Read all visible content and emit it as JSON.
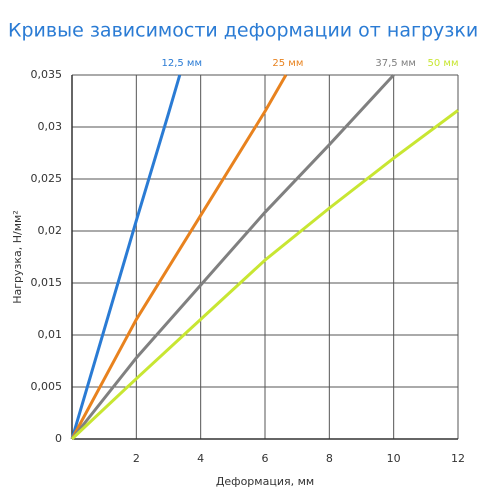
{
  "chart_data": {
    "type": "line",
    "title": "Кривые зависимости деформации от нагрузки",
    "x_label": "Деформация, мм",
    "y_label": "Нагрузка, Н/мм²",
    "xlim": [
      0,
      12
    ],
    "xticks": [
      2,
      4,
      6,
      8,
      10,
      12
    ],
    "ylim": [
      0,
      0.035
    ],
    "yticks": [
      0,
      {
        "value": 0.005,
        "label": "0,005"
      },
      {
        "value": 0.01,
        "label": "0,01"
      },
      {
        "value": 0.015,
        "label": "0,015"
      },
      {
        "value": 0.02,
        "label": "0,02"
      },
      {
        "value": 0.025,
        "label": "0,025"
      },
      {
        "value": 0.03,
        "label": "0,03"
      },
      {
        "value": 0.035,
        "label": "0,035"
      }
    ],
    "grid": true,
    "series": [
      {
        "name": "12,5 мм",
        "color": "#2a7bd4",
        "x": [
          0,
          1,
          2,
          3,
          3.35
        ],
        "values": [
          0,
          0.0105,
          0.021,
          0.0313,
          0.035
        ]
      },
      {
        "name": "25 мм",
        "color": "#e8821e",
        "x": [
          0,
          2,
          4,
          6,
          6.65
        ],
        "values": [
          0,
          0.0115,
          0.0215,
          0.0315,
          0.035
        ]
      },
      {
        "name": "37,5 мм",
        "color": "#808080",
        "x": [
          0,
          2,
          4,
          6,
          8,
          10
        ],
        "values": [
          0,
          0.0078,
          0.0148,
          0.0218,
          0.0283,
          0.035
        ]
      },
      {
        "name": "50 мм",
        "color": "#c8e632",
        "x": [
          0,
          2,
          4,
          6,
          8,
          10,
          12
        ],
        "values": [
          0,
          0.0058,
          0.0115,
          0.0172,
          0.0222,
          0.027,
          0.0316
        ]
      }
    ]
  }
}
